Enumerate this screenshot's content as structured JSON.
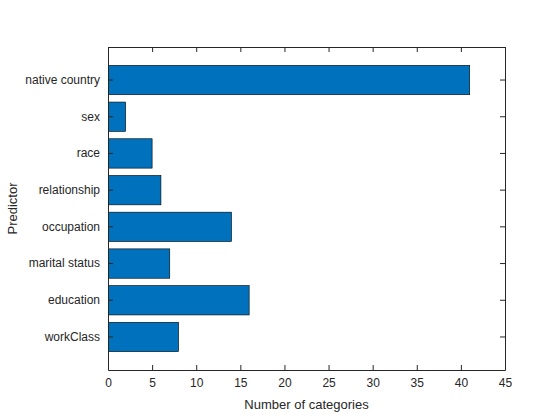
{
  "chart_data": {
    "type": "bar",
    "orientation": "horizontal",
    "categories": [
      "workClass",
      "education",
      "marital status",
      "occupation",
      "relationship",
      "race",
      "sex",
      "native country"
    ],
    "values": [
      8,
      16,
      7,
      14,
      6,
      5,
      2,
      41
    ],
    "color": "#0072bd",
    "xlabel": "Number of categories",
    "ylabel": "Predictor",
    "xlim": [
      0,
      45
    ],
    "xticks": [
      0,
      5,
      10,
      15,
      20,
      25,
      30,
      35,
      40,
      45
    ],
    "grid": false
  }
}
